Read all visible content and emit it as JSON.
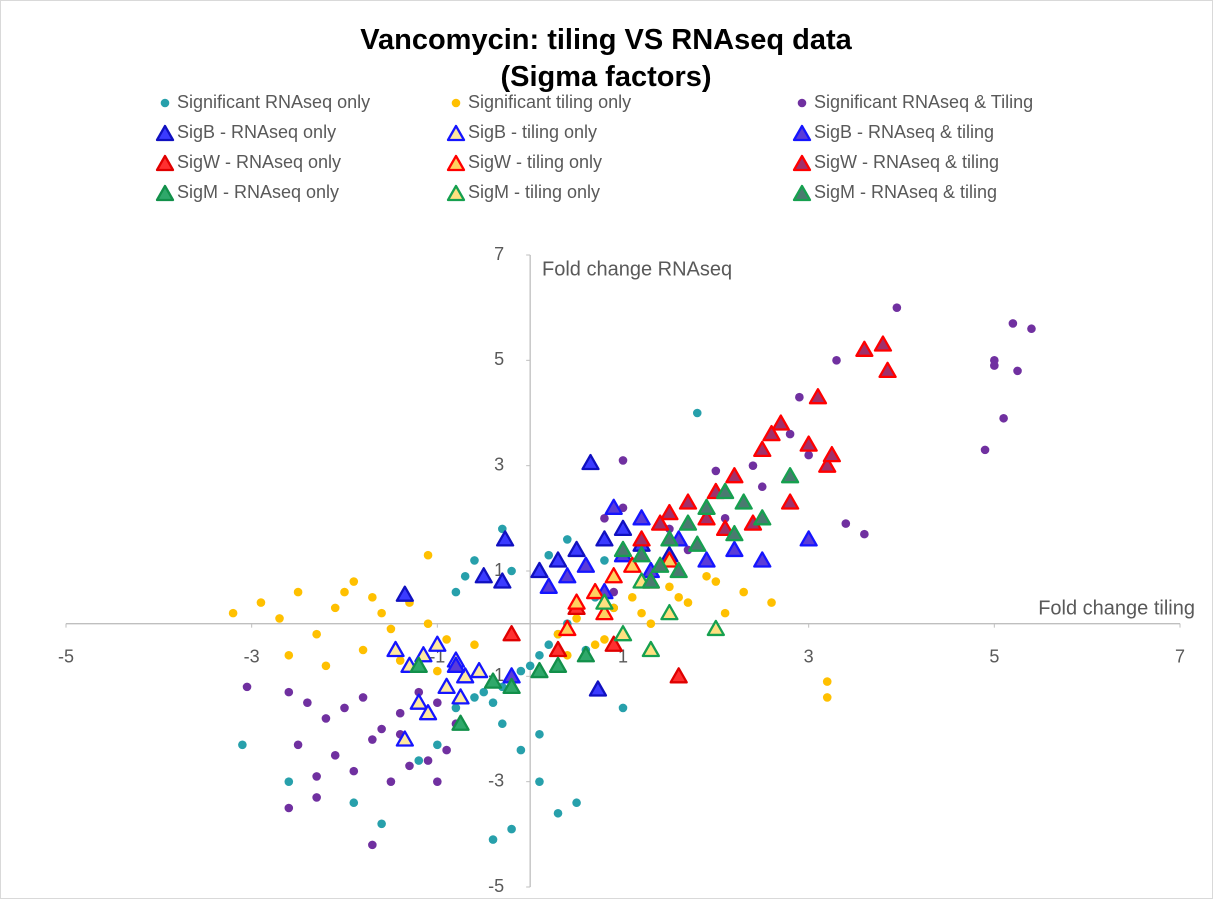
{
  "chart_data": {
    "type": "scatter",
    "title": "Vancomycin: tiling VS RNAseq data (Sigma factors)",
    "x_label": "Fold change tiling",
    "y_label": "Fold change RNAseq",
    "xlim": [
      -5,
      7
    ],
    "ylim": [
      -5,
      7
    ],
    "xticks": [
      -5,
      -3,
      -1,
      1,
      3,
      5,
      7
    ],
    "yticks": [
      -5,
      -3,
      -1,
      1,
      3,
      5,
      7
    ],
    "grid": false,
    "series": [
      {
        "name": "Significant RNAseq only",
        "marker": "circle",
        "color": "#27a0ab",
        "x": [
          -3.1,
          -2.6,
          -1.9,
          -1.6,
          -1.2,
          -1.0,
          -0.8,
          -0.6,
          -0.5,
          -0.4,
          -0.3,
          -0.2,
          -0.1,
          0.0,
          0.1,
          0.2,
          0.3,
          0.4,
          0.5,
          0.6,
          0.7,
          0.9,
          1.0,
          -0.8,
          -0.6,
          -0.3,
          -0.1,
          0.1,
          0.3,
          0.5,
          -0.7,
          -0.2,
          0.2,
          0.4,
          -0.4,
          -0.2,
          0.1,
          1.8,
          0.8,
          -0.3
        ],
        "y": [
          -2.3,
          -3.0,
          -3.4,
          -3.8,
          -2.6,
          -2.3,
          -1.6,
          -1.4,
          -1.3,
          -1.5,
          -1.2,
          -1.1,
          -0.9,
          -0.8,
          -0.6,
          -0.4,
          -0.2,
          0.0,
          0.3,
          -0.5,
          0.5,
          0.3,
          -1.6,
          0.6,
          1.2,
          1.8,
          -2.4,
          -3.0,
          -3.6,
          -3.4,
          0.9,
          1.0,
          1.3,
          1.6,
          -4.1,
          -3.9,
          -2.1,
          4.0,
          1.2,
          -1.9
        ]
      },
      {
        "name": "Significant tiling only",
        "marker": "circle",
        "color": "#ffc000",
        "x": [
          -3.2,
          -2.9,
          -2.7,
          -2.5,
          -2.3,
          -2.1,
          -1.9,
          -1.7,
          -1.5,
          -1.3,
          -1.1,
          -0.9,
          -2.6,
          -2.2,
          -1.8,
          -1.4,
          -1.0,
          -0.6,
          -2.0,
          -1.6,
          0.3,
          0.5,
          0.7,
          0.9,
          1.1,
          1.3,
          1.5,
          1.7,
          1.9,
          2.1,
          2.3,
          0.4,
          0.8,
          1.2,
          1.6,
          2.0,
          2.6,
          3.2,
          3.2,
          -1.1
        ],
        "y": [
          0.2,
          0.4,
          0.1,
          0.6,
          -0.2,
          0.3,
          0.8,
          0.5,
          -0.1,
          0.4,
          0.0,
          -0.3,
          -0.6,
          -0.8,
          -0.5,
          -0.7,
          -0.9,
          -0.4,
          0.6,
          0.2,
          -0.2,
          0.1,
          -0.4,
          0.3,
          0.5,
          0.0,
          0.7,
          0.4,
          0.9,
          0.2,
          0.6,
          -0.6,
          -0.3,
          0.2,
          0.5,
          0.8,
          0.4,
          -1.1,
          -1.4,
          1.3
        ]
      },
      {
        "name": "Significant RNAseq & Tiling",
        "marker": "circle",
        "color": "#7030a0",
        "x": [
          -3.05,
          -2.6,
          -2.4,
          -2.2,
          -2.0,
          -1.8,
          -1.6,
          -1.4,
          -1.2,
          -1.0,
          -0.8,
          -2.5,
          -2.1,
          -1.7,
          -1.3,
          -0.9,
          -2.3,
          -1.9,
          -1.5,
          -1.1,
          -2.6,
          -2.3,
          -1.7,
          -1.0,
          0.9,
          1.3,
          1.7,
          2.1,
          2.5,
          1.0,
          1.5,
          2.0,
          2.4,
          2.8,
          3.0,
          3.3,
          2.9,
          3.4,
          3.6,
          3.95,
          4.9,
          5.0,
          5.1,
          5.2,
          5.25,
          5.4,
          5.0,
          1.0,
          0.8,
          -1.4
        ],
        "y": [
          -1.2,
          -1.3,
          -1.5,
          -1.8,
          -1.6,
          -1.4,
          -2.0,
          -1.7,
          -1.3,
          -1.5,
          -1.9,
          -2.3,
          -2.5,
          -2.2,
          -2.7,
          -2.4,
          -2.9,
          -2.8,
          -3.0,
          -2.6,
          -3.5,
          -3.3,
          -4.2,
          -3.0,
          0.6,
          1.0,
          1.4,
          2.0,
          2.6,
          2.2,
          1.8,
          2.9,
          3.0,
          3.6,
          3.2,
          5.0,
          4.3,
          1.9,
          1.7,
          6.0,
          3.3,
          5.0,
          3.9,
          5.7,
          4.8,
          5.6,
          4.9,
          3.1,
          2.0,
          -2.1
        ]
      },
      {
        "name": "SigB - RNAseq only",
        "marker": "triangle",
        "color": "#3b3bff",
        "edge": "#1010c0",
        "x": [
          -1.35,
          -0.27,
          -0.5,
          -0.3,
          0.1,
          0.3,
          0.5,
          0.8,
          1.0,
          1.2,
          0.65,
          0.73,
          1.5
        ],
        "y": [
          0.55,
          1.6,
          0.9,
          0.8,
          1.0,
          1.2,
          1.4,
          1.6,
          1.8,
          1.5,
          3.05,
          -1.25,
          1.3
        ]
      },
      {
        "name": "SigB - tiling only",
        "marker": "triangle",
        "color": "#ffe9a0",
        "edge": "#1515ff",
        "x": [
          -1.45,
          -1.3,
          -1.15,
          -1.0,
          -0.8,
          -0.7,
          -0.55,
          -1.2,
          -0.9,
          -1.1,
          -1.35,
          -0.75
        ],
        "y": [
          -0.5,
          -0.8,
          -0.6,
          -0.4,
          -0.7,
          -1.0,
          -0.9,
          -1.5,
          -1.2,
          -1.7,
          -2.2,
          -1.4
        ]
      },
      {
        "name": "SigB - RNAseq & tiling",
        "marker": "triangle",
        "color": "#5a3cd8",
        "edge": "#1515ff",
        "x": [
          0.2,
          0.4,
          0.6,
          0.8,
          1.0,
          1.3,
          1.6,
          1.9,
          2.2,
          2.5,
          3.0,
          0.9,
          1.2,
          -0.8,
          -0.2
        ],
        "y": [
          0.7,
          0.9,
          1.1,
          0.6,
          1.3,
          1.0,
          1.6,
          1.2,
          1.4,
          1.2,
          1.6,
          2.2,
          2.0,
          -0.8,
          -1.0
        ]
      },
      {
        "name": "SigW - RNAseq only",
        "marker": "triangle",
        "color": "#ff3030",
        "edge": "#e00000",
        "x": [
          -0.2,
          0.3,
          0.5,
          0.9,
          1.6
        ],
        "y": [
          -0.2,
          -0.5,
          0.3,
          -0.4,
          -1.0
        ]
      },
      {
        "name": "SigW - tiling only",
        "marker": "triangle",
        "color": "#ffd060",
        "edge": "#ff0000",
        "x": [
          0.5,
          0.7,
          0.8,
          1.1,
          1.3,
          1.5,
          0.4,
          0.9
        ],
        "y": [
          0.4,
          0.6,
          0.2,
          1.1,
          0.8,
          1.2,
          -0.1,
          0.9
        ]
      },
      {
        "name": "SigW - RNAseq & tiling",
        "marker": "triangle",
        "color": "#a0306a",
        "edge": "#ff0000",
        "x": [
          1.2,
          1.5,
          1.7,
          2.0,
          2.2,
          2.5,
          2.7,
          2.8,
          3.0,
          3.1,
          3.2,
          3.25,
          3.6,
          3.8,
          3.85,
          2.1,
          2.4,
          1.9,
          2.6,
          1.4
        ],
        "y": [
          1.6,
          2.1,
          2.3,
          2.5,
          2.8,
          3.3,
          3.8,
          2.3,
          3.4,
          4.3,
          3.0,
          3.2,
          5.2,
          5.3,
          4.8,
          1.8,
          1.9,
          2.0,
          3.6,
          1.9
        ]
      },
      {
        "name": "SigM - RNAseq only",
        "marker": "triangle",
        "color": "#2fa86a",
        "edge": "#12904a",
        "x": [
          -1.2,
          -0.4,
          -0.2,
          0.1,
          0.3,
          0.6,
          -0.75
        ],
        "y": [
          -0.8,
          -1.1,
          -1.2,
          -0.9,
          -0.8,
          -0.6,
          -1.9
        ]
      },
      {
        "name": "SigM - tiling only",
        "marker": "triangle",
        "color": "#ffe080",
        "edge": "#16a04f",
        "x": [
          1.0,
          1.3,
          1.5,
          2.0,
          0.8,
          1.2
        ],
        "y": [
          -0.2,
          -0.5,
          0.2,
          -0.1,
          0.4,
          0.8
        ]
      },
      {
        "name": "SigM - RNAseq & tiling",
        "marker": "triangle",
        "color": "#4a7a70",
        "edge": "#16a04f",
        "x": [
          1.2,
          1.5,
          1.7,
          1.9,
          2.1,
          2.3,
          2.5,
          2.8,
          1.4,
          1.8,
          2.2,
          1.6,
          1.0,
          1.3
        ],
        "y": [
          1.3,
          1.6,
          1.9,
          2.2,
          2.5,
          2.3,
          2.0,
          2.8,
          1.1,
          1.5,
          1.7,
          1.0,
          1.4,
          0.8
        ]
      }
    ]
  }
}
